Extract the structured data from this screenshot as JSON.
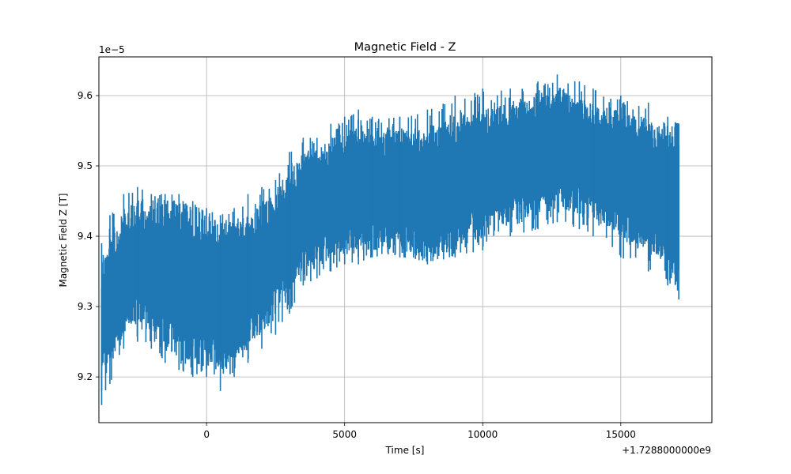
{
  "chart_data": {
    "type": "line",
    "title": "Magnetic Field - Z",
    "xlabel": "Time [s]",
    "ylabel": "Magnetic Field Z [T]",
    "x_offset_text": "+1.7288000000e9",
    "y_exponent_text": "1e−5",
    "xlim": [
      -3900,
      18300
    ],
    "ylim": [
      9.135,
      9.655
    ],
    "xticks": [
      0,
      5000,
      10000,
      15000
    ],
    "xtick_labels": [
      "0",
      "5000",
      "10000",
      "15000"
    ],
    "yticks": [
      9.2,
      9.3,
      9.4,
      9.5,
      9.6
    ],
    "ytick_labels": [
      "9.2",
      "9.3",
      "9.4",
      "9.5",
      "9.6"
    ],
    "grid": true,
    "legend": "none",
    "series": [
      {
        "color": "#1f77b4",
        "x": [
          -3800,
          -3500,
          -3000,
          -2500,
          -2000,
          -1500,
          -1000,
          -500,
          0,
          500,
          1000,
          1500,
          2000,
          2500,
          3000,
          3500,
          4000,
          4500,
          5000,
          5500,
          6000,
          7000,
          8000,
          9000,
          10000,
          11000,
          12000,
          12700,
          13500,
          14000,
          15000,
          16000,
          16700,
          17100
        ],
        "y_low": [
          9.18,
          9.22,
          9.26,
          9.28,
          9.26,
          9.24,
          9.23,
          9.22,
          9.21,
          9.21,
          9.22,
          9.24,
          9.26,
          9.29,
          9.32,
          9.35,
          9.36,
          9.37,
          9.38,
          9.38,
          9.38,
          9.38,
          9.37,
          9.38,
          9.4,
          9.42,
          9.43,
          9.44,
          9.43,
          9.42,
          9.4,
          9.38,
          9.36,
          9.32
        ],
        "y_high": [
          9.37,
          9.4,
          9.43,
          9.45,
          9.45,
          9.45,
          9.44,
          9.44,
          9.43,
          9.42,
          9.42,
          9.43,
          9.45,
          9.46,
          9.49,
          9.52,
          9.53,
          9.54,
          9.55,
          9.55,
          9.55,
          9.55,
          9.56,
          9.57,
          9.58,
          9.59,
          9.6,
          9.61,
          9.6,
          9.59,
          9.58,
          9.57,
          9.56,
          9.56
        ],
        "spike_low": [
          9.16,
          9.19,
          9.24,
          9.25,
          9.24,
          9.22,
          9.21,
          9.2,
          9.2,
          9.18,
          9.2,
          9.22,
          9.24,
          9.26,
          9.29,
          9.33,
          9.34,
          9.35,
          9.36,
          9.36,
          9.37,
          9.37,
          9.36,
          9.37,
          9.38,
          9.4,
          9.41,
          9.42,
          9.41,
          9.4,
          9.37,
          9.35,
          9.33,
          9.31
        ],
        "spike_high": [
          9.39,
          9.43,
          9.46,
          9.47,
          9.46,
          9.46,
          9.46,
          9.45,
          9.44,
          9.43,
          9.44,
          9.46,
          9.47,
          9.48,
          9.52,
          9.54,
          9.54,
          9.56,
          9.57,
          9.58,
          9.57,
          9.57,
          9.58,
          9.6,
          9.61,
          9.61,
          9.62,
          9.63,
          9.62,
          9.61,
          9.6,
          9.59,
          9.57,
          9.56
        ]
      }
    ]
  }
}
